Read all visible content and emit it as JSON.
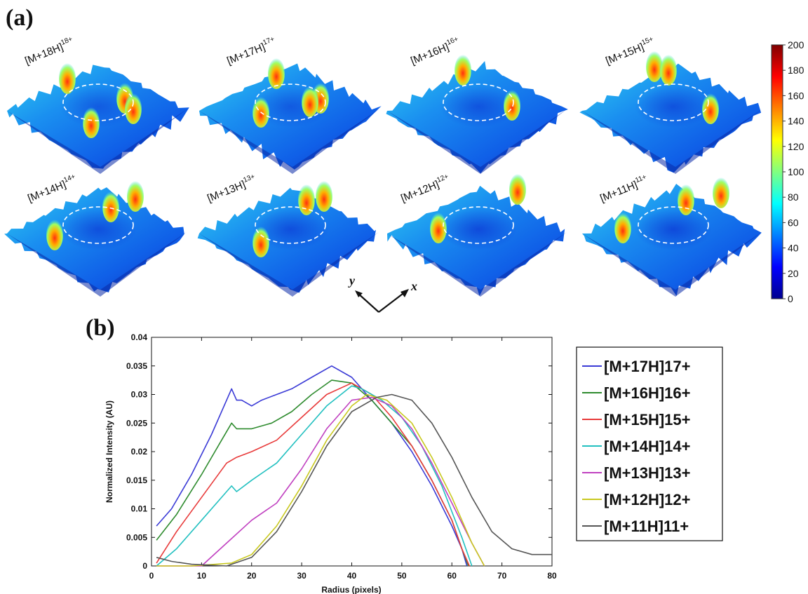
{
  "panel_a_label": "(a)",
  "panel_b_label": "(b)",
  "surfaces": [
    {
      "base": "[M+18H]",
      "charge": "18+",
      "level": 0.62
    },
    {
      "base": "[M+17H]",
      "charge": "17+",
      "level": 0.6
    },
    {
      "base": "[M+16H]",
      "charge": "16+",
      "level": 0.5
    },
    {
      "base": "[M+15H]",
      "charge": "15+",
      "level": 0.48
    },
    {
      "base": "[M+14H]",
      "charge": "14+",
      "level": 0.45
    },
    {
      "base": "[M+13H]",
      "charge": "13+",
      "level": 0.42
    },
    {
      "base": "[M+12H]",
      "charge": "12+",
      "level": 0.36
    },
    {
      "base": "[M+11H]",
      "charge": "11+",
      "level": 0.35
    }
  ],
  "axes_arrows": {
    "y": "y",
    "x": "x"
  },
  "colorbar": {
    "ticks": [
      "200",
      "180",
      "160",
      "140",
      "120",
      "100",
      "80",
      "60",
      "40",
      "20",
      "0"
    ],
    "range": [
      0,
      200
    ],
    "colors": [
      "#00008f",
      "#0000ff",
      "#0080ff",
      "#00ffff",
      "#80ff80",
      "#ffff00",
      "#ff8000",
      "#ff0000",
      "#800000"
    ]
  },
  "chart_data": {
    "type": "line",
    "title": "",
    "xlabel": "Radius (pixels)",
    "ylabel": "Normalized Intensity (AU)",
    "xlim": [
      0,
      80
    ],
    "ylim": [
      0,
      0.04
    ],
    "xticks": [
      "0",
      "10",
      "20",
      "30",
      "40",
      "50",
      "60",
      "70",
      "80"
    ],
    "yticks": [
      "0",
      "0.005",
      "0.01",
      "0.015",
      "0.02",
      "0.025",
      "0.03",
      "0.035",
      "0.04"
    ],
    "grid": false,
    "legend_position": "right",
    "series": [
      {
        "name": "[M+17H]17+",
        "color": "#3a3ad6",
        "x": [
          1,
          4,
          8,
          12,
          15,
          16,
          17,
          18,
          20,
          22,
          25,
          28,
          32,
          36,
          40,
          44,
          48,
          52,
          56,
          60,
          62,
          63
        ],
        "y": [
          0.007,
          0.01,
          0.016,
          0.023,
          0.029,
          0.031,
          0.029,
          0.029,
          0.028,
          0.029,
          0.03,
          0.031,
          0.033,
          0.035,
          0.033,
          0.029,
          0.025,
          0.02,
          0.014,
          0.007,
          0.003,
          0.0
        ]
      },
      {
        "name": "[M+16H]16+",
        "color": "#2e8b2e",
        "x": [
          1,
          5,
          10,
          14,
          16,
          17,
          20,
          24,
          28,
          32,
          36,
          40,
          44,
          48,
          52,
          56,
          60,
          62,
          63.3
        ],
        "y": [
          0.0045,
          0.009,
          0.016,
          0.022,
          0.025,
          0.024,
          0.024,
          0.025,
          0.027,
          0.03,
          0.0325,
          0.032,
          0.029,
          0.025,
          0.021,
          0.015,
          0.008,
          0.003,
          0.0
        ]
      },
      {
        "name": "[M+15H]15+",
        "color": "#e83a3a",
        "x": [
          1,
          5,
          10,
          15,
          17,
          20,
          25,
          30,
          35,
          40,
          44,
          48,
          52,
          56,
          60,
          62,
          63.5
        ],
        "y": [
          0.0005,
          0.006,
          0.012,
          0.018,
          0.019,
          0.02,
          0.022,
          0.026,
          0.03,
          0.032,
          0.03,
          0.026,
          0.021,
          0.015,
          0.008,
          0.003,
          0.0
        ]
      },
      {
        "name": "[M+14H]14+",
        "color": "#22c0c0",
        "x": [
          1,
          5,
          10,
          15,
          16,
          17,
          20,
          25,
          30,
          35,
          40,
          42,
          46,
          50,
          54,
          58,
          62,
          64
        ],
        "y": [
          0.0,
          0.003,
          0.008,
          0.013,
          0.014,
          0.013,
          0.015,
          0.018,
          0.023,
          0.028,
          0.0315,
          0.031,
          0.029,
          0.026,
          0.021,
          0.014,
          0.005,
          0.0
        ]
      },
      {
        "name": "[M+13H]13+",
        "color": "#c040c0",
        "x": [
          1,
          6,
          10,
          15,
          20,
          25,
          30,
          35,
          40,
          44,
          48,
          52,
          56,
          60,
          64,
          66.5
        ],
        "y": [
          0.0,
          0.0,
          0.0,
          0.004,
          0.008,
          0.011,
          0.017,
          0.024,
          0.029,
          0.0295,
          0.028,
          0.024,
          0.018,
          0.011,
          0.004,
          0.0
        ]
      },
      {
        "name": "[M+12H]12+",
        "color": "#c8c81e",
        "x": [
          1,
          8,
          16,
          20,
          25,
          30,
          35,
          40,
          43,
          47,
          52,
          56,
          60,
          64,
          66.5
        ],
        "y": [
          0.0,
          0.0,
          0.0005,
          0.002,
          0.007,
          0.014,
          0.022,
          0.028,
          0.03,
          0.029,
          0.025,
          0.019,
          0.012,
          0.004,
          0.0
        ]
      },
      {
        "name": "[M+11H]11+",
        "color": "#555555",
        "x": [
          1,
          4,
          8,
          15,
          20,
          25,
          30,
          35,
          40,
          45,
          48,
          52,
          56,
          60,
          64,
          68,
          72,
          76,
          80
        ],
        "y": [
          0.0015,
          0.0008,
          0.0003,
          0.0,
          0.0015,
          0.006,
          0.013,
          0.021,
          0.027,
          0.0295,
          0.03,
          0.029,
          0.025,
          0.019,
          0.012,
          0.006,
          0.003,
          0.002,
          0.002
        ]
      }
    ]
  }
}
